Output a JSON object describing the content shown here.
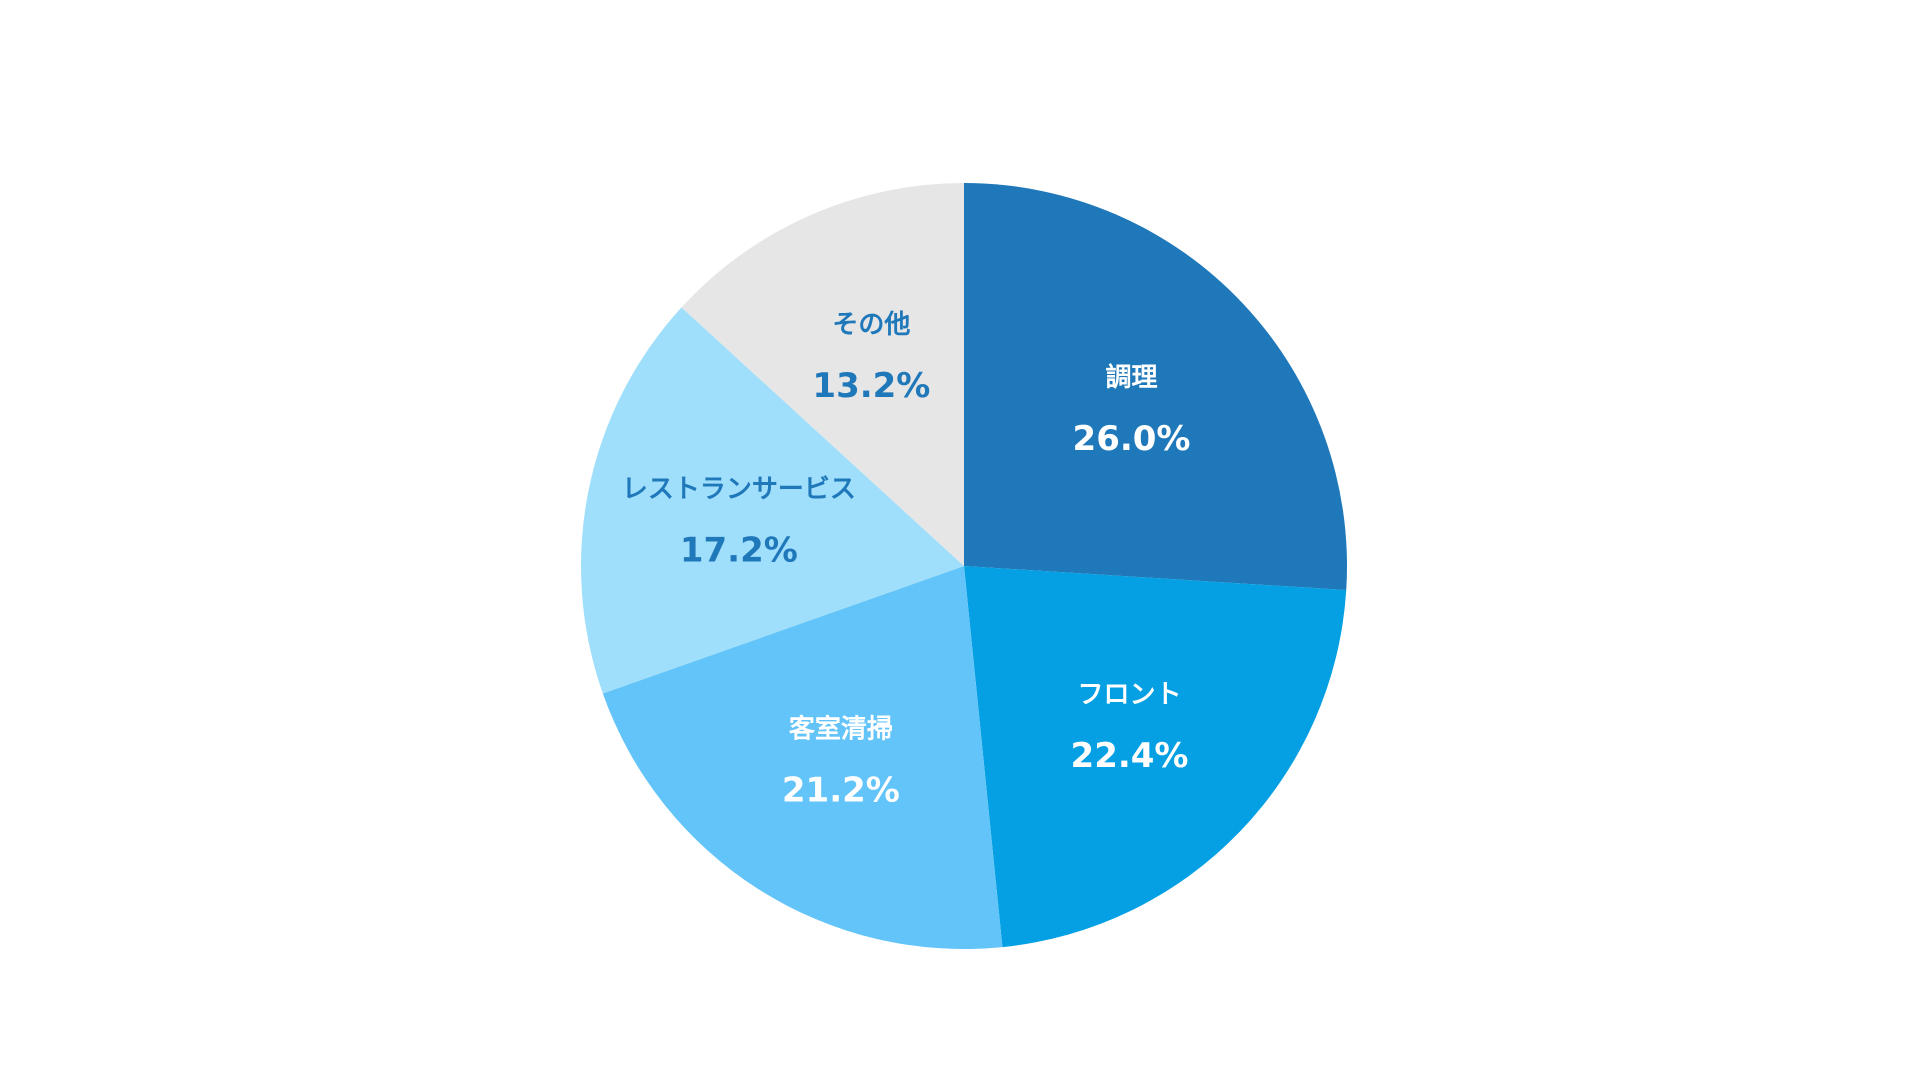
{
  "chart_data": {
    "type": "pie",
    "categories": [
      "調理",
      "フロント",
      "客室清掃",
      "レストランサービス",
      "その他"
    ],
    "values": [
      26.0,
      22.4,
      21.2,
      17.2,
      13.2
    ],
    "value_labels": [
      "26.0%",
      "22.4%",
      "21.2%",
      "17.2%",
      "13.2%"
    ],
    "colors": [
      "#1f78b9",
      "#04a0e3",
      "#62c4f9",
      "#a0dffc",
      "#e6e6e6"
    ],
    "label_colors": [
      "#ffffff",
      "#ffffff",
      "#ffffff",
      "#1f78b9",
      "#1f78b9"
    ]
  }
}
